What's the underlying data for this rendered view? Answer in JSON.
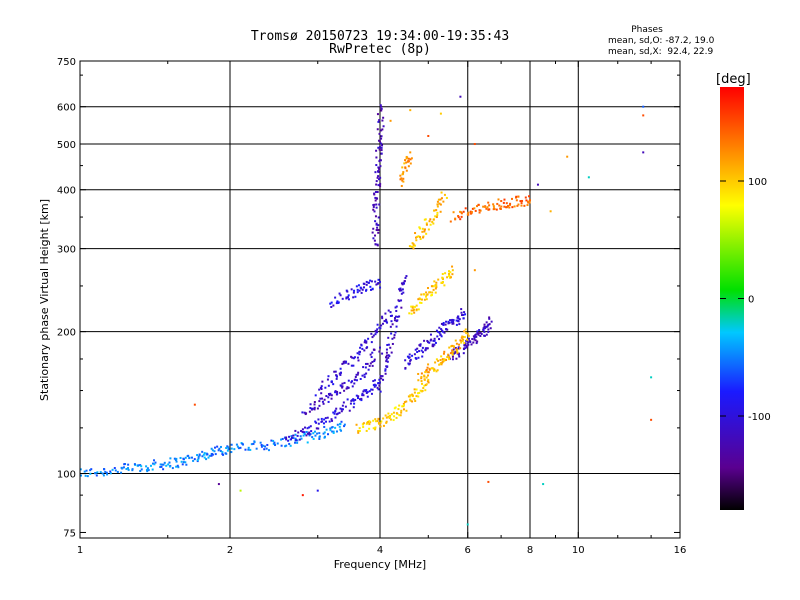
{
  "chart_data": {
    "type": "scatter",
    "title": "Tromsø 20150723 19:34:00-19:35:43",
    "subtitle": "RwPretec (8p)",
    "xlabel": "Frequency [MHz]",
    "ylabel": "Stationary phase Virtual Height [km]",
    "x_scale": "log",
    "y_scale": "log",
    "xlim": [
      1,
      16
    ],
    "ylim": [
      73,
      750
    ],
    "x_ticks": [
      1,
      2,
      4,
      6,
      8,
      10,
      16
    ],
    "x_tick_labels": [
      "1",
      "2",
      "4",
      "6",
      "8",
      "10",
      "16"
    ],
    "y_ticks": [
      75,
      100,
      200,
      300,
      400,
      500,
      600,
      750
    ],
    "y_tick_labels": [
      "75",
      "100",
      "200",
      "300",
      "400",
      "500",
      "600",
      "750"
    ],
    "x_gridlines": [
      2,
      4,
      6,
      8,
      10
    ],
    "y_gridlines": [
      100,
      200,
      300,
      400,
      500,
      600
    ],
    "phase_stats": {
      "title": "Phases",
      "line_o": "mean, sd,O: -87.2, 19.0",
      "line_x": "mean, sd,X:  92.4, 22.9"
    },
    "colorbar": {
      "label": "[deg]",
      "range": [
        -180,
        180
      ],
      "ticks": [
        100,
        0,
        -100
      ],
      "tick_labels": [
        "100",
        "0",
        "-100"
      ],
      "colors": [
        "#000000",
        "#5a0090",
        "#1a1aff",
        "#00c8ff",
        "#00e000",
        "#ffff00",
        "#ff8000",
        "#ff0000"
      ]
    },
    "series": [
      {
        "traces": [
          {
            "x": [
              1.0,
              1.1,
              1.2,
              1.3,
              1.4,
              1.5,
              1.6,
              1.7,
              1.8,
              1.9,
              2.0,
              2.2,
              2.4,
              2.6,
              2.8,
              3.0,
              3.2,
              3.4
            ],
            "y": [
              100,
              101,
              102,
              103,
              104,
              105,
              106,
              108,
              110,
              112,
              113,
              114,
              115,
              117,
              119,
              121,
              124,
              127
            ],
            "phase": -50
          },
          {
            "x": [
              2.6,
              2.8,
              3.0,
              3.2,
              3.4,
              3.6,
              3.8,
              4.0
            ],
            "y": [
              118,
              122,
              127,
              132,
              138,
              144,
              150,
              156
            ],
            "phase": -100
          },
          {
            "x": [
              2.8,
              3.0,
              3.2,
              3.4,
              3.6,
              3.8,
              4.0
            ],
            "y": [
              135,
              140,
              146,
              152,
              160,
              170,
              185
            ],
            "phase": -110
          },
          {
            "x": [
              3.0,
              3.2,
              3.4,
              3.6,
              3.8,
              4.0,
              4.2
            ],
            "y": [
              150,
              158,
              168,
              178,
              190,
              205,
              220
            ],
            "phase": -105
          },
          {
            "x": [
              3.2,
              3.4,
              3.6,
              3.8,
              4.0
            ],
            "y": [
              230,
              238,
              245,
              250,
              255
            ],
            "phase": -95
          },
          {
            "x": [
              3.9,
              3.92,
              3.94,
              3.96,
              3.98,
              4.0,
              4.02
            ],
            "y": [
              300,
              340,
              380,
              420,
              470,
              520,
              600
            ],
            "phase": -120
          },
          {
            "x": [
              4.0,
              4.1,
              4.2,
              4.3,
              4.4,
              4.5
            ],
            "y": [
              150,
              170,
              190,
              210,
              240,
              260
            ],
            "phase": -110
          },
          {
            "x": [
              4.5,
              4.7,
              4.9,
              5.1,
              5.3,
              5.5,
              5.7,
              5.9
            ],
            "y": [
              170,
              178,
              185,
              192,
              200,
              206,
              212,
              220
            ],
            "phase": -105
          },
          {
            "x": [
              5.5,
              5.7,
              5.9,
              6.1,
              6.3,
              6.5,
              6.7
            ],
            "y": [
              175,
              180,
              185,
              190,
              196,
              202,
              210
            ],
            "phase": -115
          },
          {
            "x": [
              3.6,
              3.8,
              4.0,
              4.2,
              4.4,
              4.6,
              4.8,
              5.0
            ],
            "y": [
              124,
              126,
              128,
              132,
              137,
              143,
              150,
              158
            ],
            "phase": 100
          },
          {
            "x": [
              4.6,
              4.8,
              5.0,
              5.2,
              5.4
            ],
            "y": [
              300,
              320,
              340,
              360,
              390
            ],
            "phase": 105
          },
          {
            "x": [
              4.6,
              4.8,
              5.0,
              5.2,
              5.4,
              5.6
            ],
            "y": [
              220,
              230,
              240,
              250,
              260,
              270
            ],
            "phase": 100
          },
          {
            "x": [
              4.8,
              5.0,
              5.2,
              5.4,
              5.6,
              5.8,
              6.0
            ],
            "y": [
              160,
              165,
              170,
              176,
              182,
              190,
              198
            ],
            "phase": 110
          },
          {
            "x": [
              4.4,
              4.5,
              4.6
            ],
            "y": [
              410,
              450,
              480
            ],
            "phase": 120
          },
          {
            "x": [
              5.6,
              6.0,
              6.4,
              6.8,
              7.2,
              7.6,
              8.0
            ],
            "y": [
              350,
              360,
              365,
              370,
              375,
              378,
              380
            ],
            "phase": 140
          }
        ],
        "isolated_points": [
          {
            "x": 13.5,
            "y": 600,
            "phase": -60
          },
          {
            "x": 13.5,
            "y": 480,
            "phase": -120
          },
          {
            "x": 13.5,
            "y": 575,
            "phase": 150
          },
          {
            "x": 10.5,
            "y": 425,
            "phase": -20
          },
          {
            "x": 9.5,
            "y": 470,
            "phase": 120
          },
          {
            "x": 14.0,
            "y": 160,
            "phase": -20
          },
          {
            "x": 14.0,
            "y": 130,
            "phase": 150
          },
          {
            "x": 8.5,
            "y": 95,
            "phase": -20
          },
          {
            "x": 6.2,
            "y": 270,
            "phase": 120
          },
          {
            "x": 1.7,
            "y": 140,
            "phase": 150
          },
          {
            "x": 1.9,
            "y": 95,
            "phase": -140
          },
          {
            "x": 2.1,
            "y": 92,
            "phase": 60
          },
          {
            "x": 2.8,
            "y": 90,
            "phase": 170
          },
          {
            "x": 3.0,
            "y": 92,
            "phase": -90
          },
          {
            "x": 6.6,
            "y": 96,
            "phase": 150
          },
          {
            "x": 6.0,
            "y": 78,
            "phase": -20
          },
          {
            "x": 5.0,
            "y": 520,
            "phase": 150
          },
          {
            "x": 4.2,
            "y": 560,
            "phase": 120
          },
          {
            "x": 4.6,
            "y": 590,
            "phase": 110
          },
          {
            "x": 5.3,
            "y": 580,
            "phase": 100
          },
          {
            "x": 5.8,
            "y": 630,
            "phase": -120
          },
          {
            "x": 6.2,
            "y": 500,
            "phase": 150
          },
          {
            "x": 8.3,
            "y": 410,
            "phase": -120
          },
          {
            "x": 8.8,
            "y": 360,
            "phase": 110
          }
        ]
      }
    ]
  }
}
